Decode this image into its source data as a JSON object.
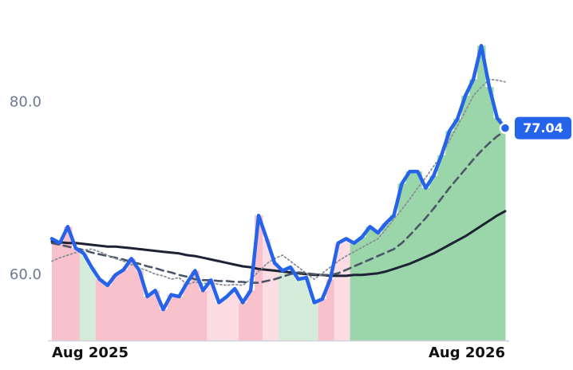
{
  "chart_data": {
    "type": "line",
    "categories": [
      "Aug 2025",
      null,
      null,
      null,
      null,
      null,
      null,
      null,
      null,
      null,
      null,
      null,
      null,
      null,
      null,
      null,
      null,
      null,
      null,
      null,
      null,
      null,
      null,
      null,
      null,
      null,
      null,
      null,
      null,
      null,
      null,
      null,
      null,
      null,
      null,
      null,
      null,
      null,
      null,
      null,
      null,
      null,
      null,
      null,
      null,
      null,
      null,
      null,
      null,
      null,
      null,
      null,
      null,
      null,
      null,
      null,
      null,
      "Aug 2026"
    ],
    "ylim": [
      52.4,
      91.9
    ],
    "yticks": [
      {
        "value": 60,
        "label": "60.0"
      },
      {
        "value": 80,
        "label": "80.0"
      }
    ],
    "grid": false,
    "area_colors": [
      "#f8c1cb",
      "#f8c1cb",
      "#f8c1cb",
      "#f8c1cb",
      "#d4ecd9",
      "#d4ecd9",
      "#f8c1cb",
      "#f8c1cb",
      "#f8c1cb",
      "#f8c1cb",
      "#f8c1cb",
      "#f8c1cb",
      "#f8c1cb",
      "#f8c1cb",
      "#f8c1cb",
      "#f8c1cb",
      "#f8c1cb",
      "#f8c1cb",
      "#f8c1cb",
      "#f8c1cb",
      "#fbdde3",
      "#fbdde3",
      "#fbdde3",
      "#fbdde3",
      "#f8c1cb",
      "#f8c1cb",
      "#f8c1cb",
      "#fbdde3",
      "#fbdde3",
      "#d4ecd9",
      "#d4ecd9",
      "#d4ecd9",
      "#d4ecd9",
      "#d4ecd9",
      "#f8c1cb",
      "#f8c1cb",
      "#fbdde3",
      "#fbdde3",
      "#9bd5aa",
      "#9bd5aa",
      "#9bd5aa",
      "#9bd5aa",
      "#9bd5aa",
      "#9bd5aa",
      "#9bd5aa",
      "#9bd5aa",
      "#9bd5aa",
      "#9bd5aa",
      "#9bd5aa",
      "#9bd5aa",
      "#9bd5aa",
      "#9bd5aa",
      "#9bd5aa",
      "#9bd5aa",
      "#9bd5aa",
      "#9bd5aa",
      "#9bd5aa",
      "#9bd5aa"
    ],
    "series": [
      {
        "color": "#2563eb",
        "style": "solid",
        "values": [
          64.2,
          63.7,
          65.6,
          63.1,
          62.5,
          60.9,
          59.5,
          58.8,
          60.0,
          60.6,
          61.9,
          60.5,
          57.5,
          58.2,
          56.0,
          57.7,
          57.5,
          59.1,
          60.5,
          58.2,
          59.4,
          56.8,
          57.5,
          58.4,
          56.8,
          58.2,
          66.9,
          64.2,
          61.4,
          60.5,
          60.9,
          59.5,
          59.7,
          56.8,
          57.2,
          59.5,
          63.7,
          64.2,
          63.7,
          64.4,
          65.6,
          64.9,
          66.0,
          66.9,
          70.6,
          72.0,
          72.0,
          70.1,
          71.5,
          73.9,
          76.7,
          78.1,
          80.8,
          82.7,
          86.6,
          81.8,
          78.2,
          77.04
        ]
      },
      {
        "color": "#8a8f99",
        "style": "dotted",
        "values": [
          61.6,
          62.0,
          62.3,
          62.6,
          62.9,
          63.0,
          62.7,
          62.3,
          61.9,
          61.6,
          61.2,
          60.8,
          60.5,
          60.1,
          59.9,
          59.5,
          59.7,
          58.9,
          59.2,
          59.0,
          59.1,
          58.9,
          58.8,
          58.9,
          58.8,
          59.5,
          60.4,
          61.3,
          61.9,
          62.3,
          61.6,
          60.9,
          60.2,
          59.5,
          60.2,
          60.9,
          61.6,
          62.2,
          62.7,
          63.2,
          63.7,
          64.2,
          65.3,
          66.5,
          67.6,
          68.8,
          70.1,
          71.3,
          72.6,
          73.9,
          75.6,
          77.3,
          79.0,
          80.8,
          81.8,
          82.7,
          82.6,
          82.4
        ]
      },
      {
        "color": "#4a5568",
        "style": "dashed",
        "values": [
          63.7,
          63.5,
          63.3,
          63.1,
          62.9,
          62.6,
          62.4,
          62.2,
          62.0,
          61.8,
          61.5,
          61.3,
          61.0,
          60.8,
          60.5,
          60.3,
          60.0,
          59.8,
          59.5,
          59.4,
          59.4,
          59.3,
          59.3,
          59.2,
          59.2,
          59.1,
          59.1,
          59.3,
          59.5,
          59.8,
          60.1,
          60.3,
          60.2,
          60.1,
          60.0,
          60.0,
          60.2,
          60.6,
          61.0,
          61.4,
          61.8,
          62.2,
          62.6,
          63.0,
          63.7,
          64.6,
          65.6,
          66.6,
          67.7,
          68.9,
          70.1,
          71.2,
          72.3,
          73.4,
          74.4,
          75.3,
          76.1,
          76.7
        ]
      },
      {
        "color": "#1e2235",
        "style": "solid-thin",
        "values": [
          63.9,
          63.8,
          63.7,
          63.7,
          63.6,
          63.5,
          63.4,
          63.3,
          63.3,
          63.2,
          63.1,
          63.0,
          62.9,
          62.8,
          62.7,
          62.6,
          62.5,
          62.3,
          62.2,
          62.0,
          61.8,
          61.6,
          61.4,
          61.2,
          61.0,
          60.9,
          60.7,
          60.6,
          60.5,
          60.4,
          60.3,
          60.2,
          60.1,
          60.0,
          60.0,
          59.9,
          59.9,
          59.9,
          60.0,
          60.0,
          60.1,
          60.2,
          60.4,
          60.7,
          61.0,
          61.3,
          61.7,
          62.1,
          62.5,
          63.0,
          63.5,
          64.0,
          64.5,
          65.1,
          65.7,
          66.3,
          66.9,
          67.4
        ]
      }
    ]
  }
}
